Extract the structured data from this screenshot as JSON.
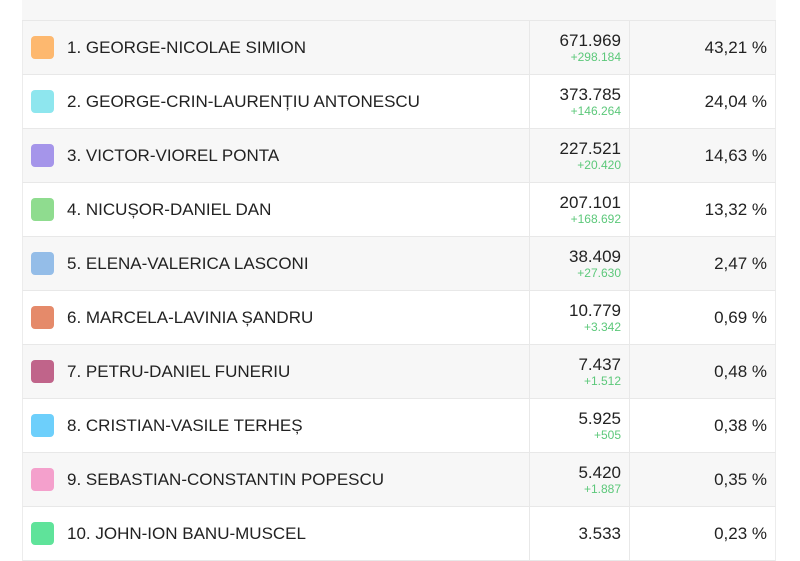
{
  "candidates": [
    {
      "name": "1. GEORGE-NICOLAE SIMION",
      "votes": "671.969",
      "delta": "+298.184",
      "percent": "43,21 %",
      "color": "#fdb86f"
    },
    {
      "name": "2. GEORGE-CRIN-LAURENȚIU ANTONESCU",
      "votes": "373.785",
      "delta": "+146.264",
      "percent": "24,04 %",
      "color": "#8ee6ee"
    },
    {
      "name": "3. VICTOR-VIOREL PONTA",
      "votes": "227.521",
      "delta": "+20.420",
      "percent": "14,63 %",
      "color": "#a595ea"
    },
    {
      "name": "4. NICUȘOR-DANIEL DAN",
      "votes": "207.101",
      "delta": "+168.692",
      "percent": "13,32 %",
      "color": "#8fdc8f"
    },
    {
      "name": "5. ELENA-VALERICA LASCONI",
      "votes": "38.409",
      "delta": "+27.630",
      "percent": "2,47 %",
      "color": "#94bde8"
    },
    {
      "name": "6. MARCELA-LAVINIA ȘANDRU",
      "votes": "10.779",
      "delta": "+3.342",
      "percent": "0,69 %",
      "color": "#e58a6a"
    },
    {
      "name": "7. PETRU-DANIEL FUNERIU",
      "votes": "7.437",
      "delta": "+1.512",
      "percent": "0,48 %",
      "color": "#c0648a"
    },
    {
      "name": "8. CRISTIAN-VASILE TERHEȘ",
      "votes": "5.925",
      "delta": "+505",
      "percent": "0,38 %",
      "color": "#6dcffb"
    },
    {
      "name": "9. SEBASTIAN-CONSTANTIN POPESCU",
      "votes": "5.420",
      "delta": "+1.887",
      "percent": "0,35 %",
      "color": "#f4a0cc"
    },
    {
      "name": "10. JOHN-ION BANU-MUSCEL",
      "votes": "3.533",
      "delta": "",
      "percent": "0,23 %",
      "color": "#5fe39a"
    }
  ]
}
